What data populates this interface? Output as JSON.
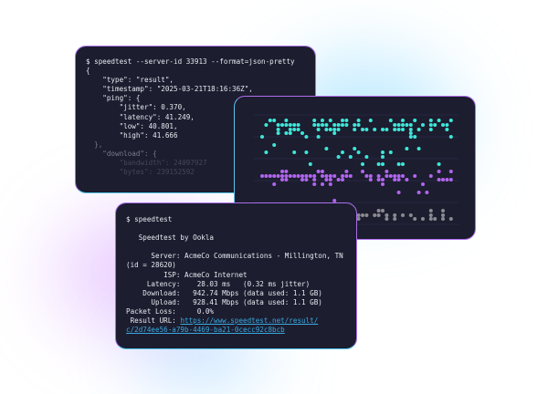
{
  "json_terminal": {
    "lines": [
      "$ speedtest --server-id 33913 --format=json-pretty",
      "{",
      "    \"type\": \"result\",",
      "    \"timestamp\": \"2025-03-21T18:16:36Z\",",
      "    \"ping\": {",
      "        \"jitter\": 0.370,",
      "        \"latency\": 41.249,",
      "        \"low\": 40.801,",
      "        \"high\": 41.666",
      "  },",
      "    \"download\": {",
      "        \"bandwidth\": 24097927",
      "        \"bytes\": 239152592"
    ]
  },
  "text_terminal": {
    "lines": [
      "$ speedtest",
      "",
      "   Speedtest by Ookla",
      "",
      "      Server: AcmeCo Communications - Millington, TN",
      "(id = 28620)",
      "         ISP: AcmeCo Internet",
      "     Latency:    28.03 ms   (0.32 ms jitter)",
      "    Download:   942.74 Mbps (data used: 1.1 GB)",
      "      Upload:   928.41 Mbps (data used: 1.1 GB)",
      "Packet Loss:     0.0%",
      " Result URL: "
    ],
    "result_url_line1": "https://www.speedtest.net/result/",
    "result_url_line2": "c/2d74ee56-a79b-4469-ba21-0cecc92c8bcb"
  },
  "dot_chart": {
    "colors": {
      "top": "#3ee6d8",
      "middle": "#b065ee",
      "bottom": "#8a8a90"
    }
  },
  "colors": {
    "panel_bg": "#1c1d2f",
    "accent_purple": "#a86ee8",
    "accent_cyan": "#58c6ee",
    "link": "#3aa8e0"
  }
}
